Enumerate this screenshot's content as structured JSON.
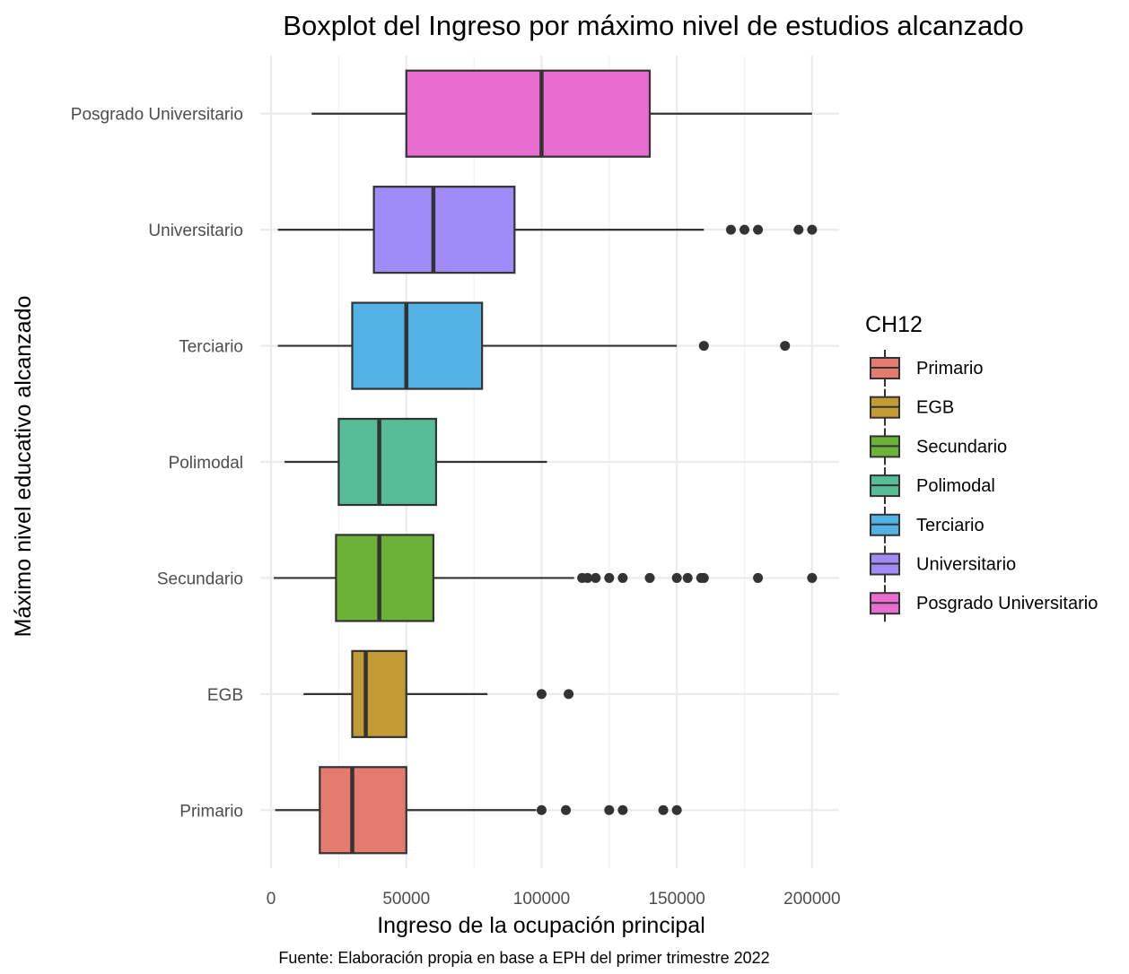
{
  "chart_data": {
    "type": "boxplot",
    "orientation": "horizontal",
    "title": "Boxplot del Ingreso por máximo nivel de estudios alcanzado",
    "caption": "Fuente: Elaboración propia en base a EPH del primer trimestre 2022",
    "xlabel": "Ingreso de la ocupación principal",
    "ylabel": "Máximo nivel educativo alcanzado",
    "xlim": [
      -4000,
      210000
    ],
    "xticks": [
      0,
      50000,
      100000,
      150000,
      200000
    ],
    "xtick_labels": [
      "0",
      "50000",
      "100000",
      "150000",
      "200000"
    ],
    "grid": true,
    "legend": {
      "title": "CH12",
      "position": "right",
      "entries": [
        "Primario",
        "EGB",
        "Secundario",
        "Polimodal",
        "Terciario",
        "Universitario",
        "Posgrado Universitario"
      ]
    },
    "series": [
      {
        "name": "Primario",
        "color": "#E57A6F",
        "whisker_low": 1500,
        "q1": 18000,
        "median": 30000,
        "q3": 50000,
        "whisker_high": 98000,
        "outliers": [
          100000,
          109000,
          125000,
          130000,
          145000,
          150000
        ]
      },
      {
        "name": "EGB",
        "color": "#C39B35",
        "whisker_low": 12000,
        "q1": 30000,
        "median": 35000,
        "q3": 50000,
        "whisker_high": 80000,
        "outliers": [
          100000,
          110000
        ]
      },
      {
        "name": "Secundario",
        "color": "#6BB236",
        "whisker_low": 1000,
        "q1": 24000,
        "median": 40000,
        "q3": 60000,
        "whisker_high": 112000,
        "outliers": [
          115000,
          117000,
          120000,
          125000,
          130000,
          140000,
          150000,
          154000,
          159000,
          160000,
          180000,
          200000
        ]
      },
      {
        "name": "Polimodal",
        "color": "#56BD96",
        "whisker_low": 5000,
        "q1": 25000,
        "median": 40000,
        "q3": 61000,
        "whisker_high": 102000,
        "outliers": []
      },
      {
        "name": "Terciario",
        "color": "#52B1E5",
        "whisker_low": 2500,
        "q1": 30000,
        "median": 50000,
        "q3": 78000,
        "whisker_high": 150000,
        "outliers": [
          160000,
          190000
        ]
      },
      {
        "name": "Universitario",
        "color": "#A18BF8",
        "whisker_low": 2500,
        "q1": 38000,
        "median": 60000,
        "q3": 90000,
        "whisker_high": 160000,
        "outliers": [
          170000,
          175000,
          180000,
          195000,
          200000
        ]
      },
      {
        "name": "Posgrado Universitario",
        "color": "#E96DD0",
        "whisker_low": 15000,
        "q1": 50000,
        "median": 100000,
        "q3": 140000,
        "whisker_high": 200000,
        "outliers": []
      }
    ]
  }
}
